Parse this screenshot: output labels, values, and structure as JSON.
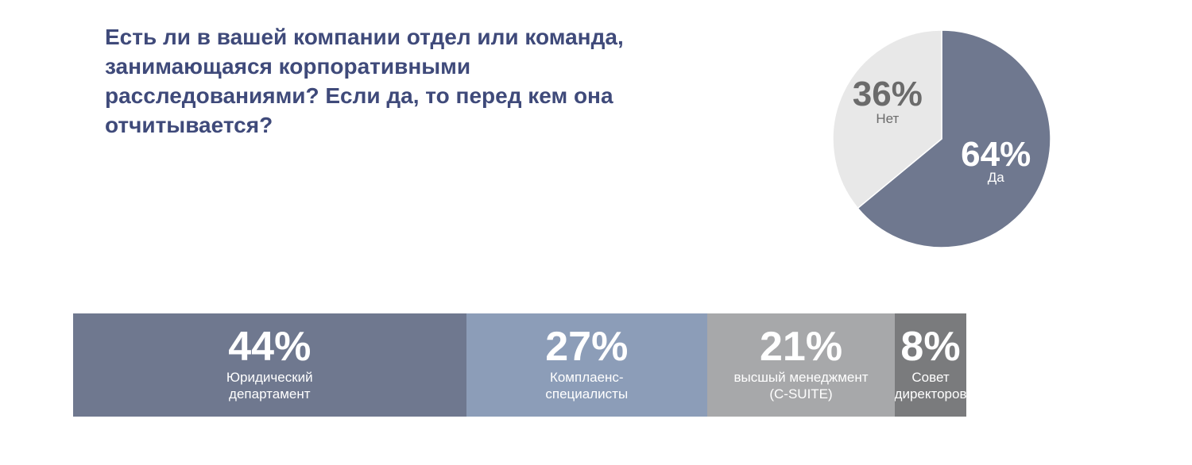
{
  "title": "Есть ли в вашей компании отдел или команда, занимающаяся корпоративными расследованиями? Если да, то перед кем она отчитывается?",
  "chart_data": [
    {
      "type": "pie",
      "title": "Есть ли в вашей компании отдел или команда, занимающаяся корпоративными расследованиями?",
      "slices": [
        {
          "label": "Да",
          "value": 64,
          "value_label": "64%",
          "color": "#6f788f",
          "text_color": "#ffffff"
        },
        {
          "label": "Нет",
          "value": 36,
          "value_label": "36%",
          "color": "#e8e8e8",
          "text_color": "#6b6b6b"
        }
      ]
    },
    {
      "type": "bar",
      "stacked": true,
      "orientation": "horizontal",
      "title": "Если да, то перед кем она отчитывается?",
      "segments": [
        {
          "label": "Юридический\nдепартамент",
          "value": 44,
          "value_label": "44%",
          "color": "#6f788f"
        },
        {
          "label": "Комплаенс-\nспециалисты",
          "value": 27,
          "value_label": "27%",
          "color": "#8c9db8"
        },
        {
          "label": "высшый менеджмент\n(C-SUITE)",
          "value": 21,
          "value_label": "21%",
          "color": "#a7a8aa"
        },
        {
          "label": "Совет\nдиректоров",
          "value": 8,
          "value_label": "8%",
          "color": "#7a7b7d"
        }
      ]
    }
  ]
}
